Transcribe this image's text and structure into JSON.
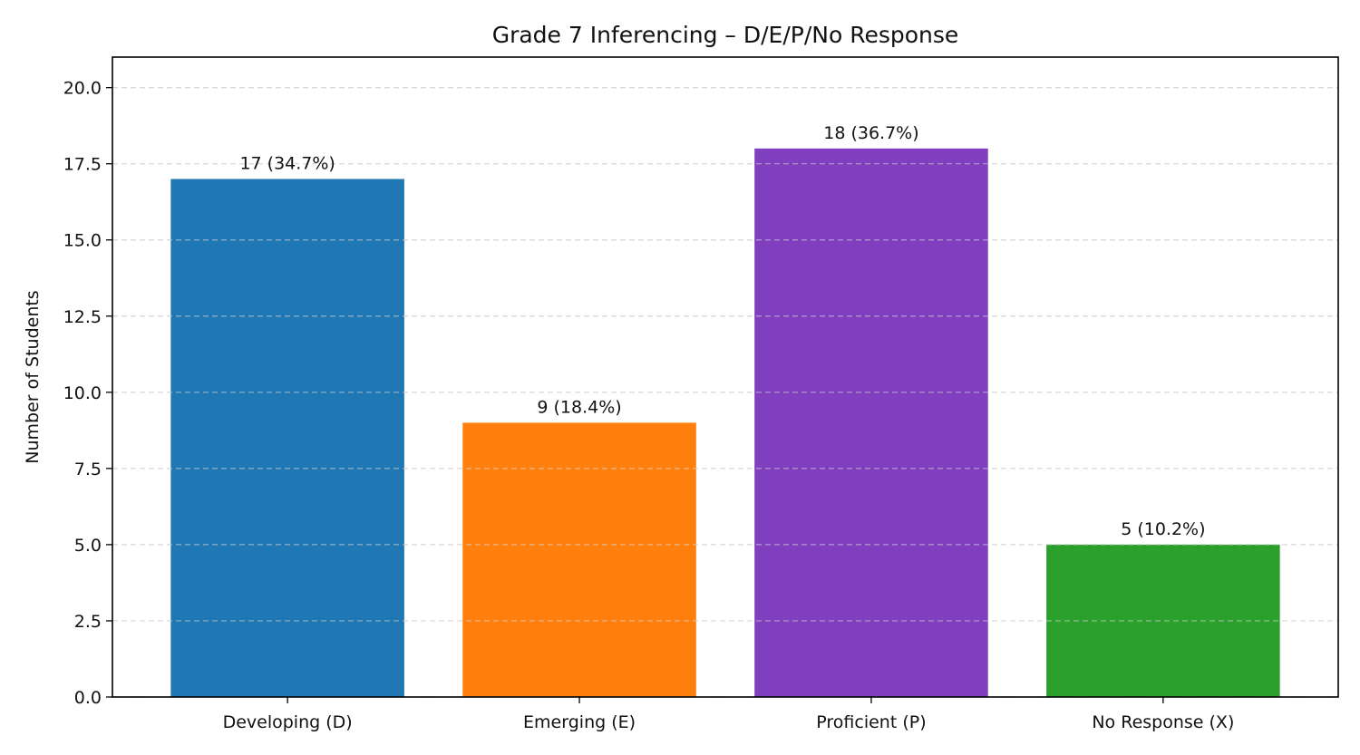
{
  "chart_data": {
    "type": "bar",
    "title": "Grade 7 Inferencing – D/E/P/No Response",
    "xlabel": "",
    "ylabel": "Number of Students",
    "categories": [
      "Developing (D)",
      "Emerging (E)",
      "Proficient (P)",
      "No Response (X)"
    ],
    "values": [
      17,
      9,
      18,
      5
    ],
    "percentages": [
      34.7,
      18.4,
      36.7,
      10.2
    ],
    "data_labels": [
      "17 (34.7%)",
      "9 (18.4%)",
      "18 (36.7%)",
      "5 (10.2%)"
    ],
    "colors": [
      "#1f77b4",
      "#ff7f0e",
      "#7f3fbf",
      "#2ca02c"
    ],
    "ylim": [
      0,
      21
    ],
    "yticks": [
      0,
      2.5,
      5,
      7.5,
      10,
      12.5,
      15,
      17.5,
      20
    ],
    "ytick_labels": [
      "0.0",
      "2.5",
      "5.0",
      "7.5",
      "10.0",
      "12.5",
      "15.0",
      "17.5",
      "20.0"
    ],
    "grid": "y-dashed",
    "legend": "none"
  }
}
